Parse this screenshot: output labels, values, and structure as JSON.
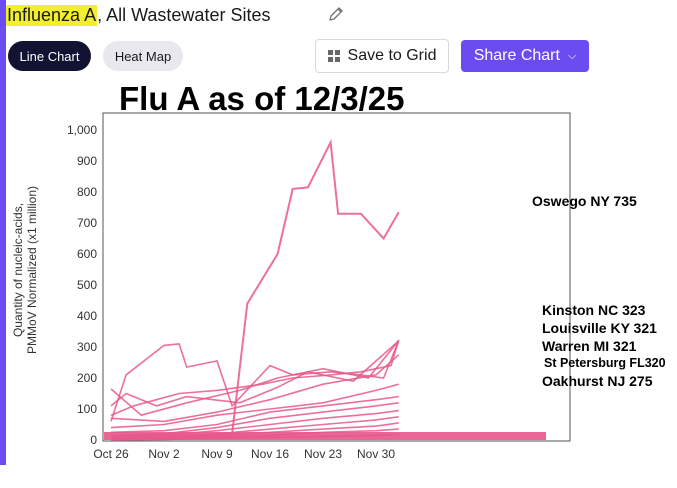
{
  "header": {
    "title_highlight": "Influenza A",
    "title_rest": ", All Wastewater Sites"
  },
  "toolbar": {
    "line_chart_label": "Line Chart",
    "heat_map_label": "Heat Map",
    "save_label": "Save to Grid",
    "share_label": "Share Chart"
  },
  "overlay_title": "Flu A as of 12/3/25",
  "annotations": [
    "Oswego NY 735",
    "Kinston NC 323",
    "Louisville KY 321",
    "Warren MI 321",
    "St Petersburg FL320",
    "Oakhurst NJ 275"
  ],
  "colors": {
    "accent": "#6a4cf0",
    "series": "#e8578a",
    "highlight": "#f2ef2e"
  },
  "chart_data": {
    "type": "line",
    "title": "",
    "xlabel": "",
    "ylabel": "Quantity of nucleic-acids,\nPMMoV Normalized (x1 million)",
    "ylim": [
      0,
      1000
    ],
    "yticks": [
      0,
      100,
      200,
      300,
      400,
      500,
      600,
      700,
      800,
      900,
      1000
    ],
    "ytick_labels": [
      "0",
      "100",
      "200",
      "300",
      "400",
      "500",
      "600",
      "700",
      "800",
      "900",
      "1,000"
    ],
    "xlim": [
      "2025-10-26",
      "2025-12-05"
    ],
    "xticks": [
      "2025-10-26",
      "2025-11-02",
      "2025-11-09",
      "2025-11-16",
      "2025-11-23",
      "2025-11-30"
    ],
    "xtick_labels": [
      "Oct 26",
      "Nov 2",
      "Nov 9",
      "Nov 16",
      "Nov 23",
      "Nov 30"
    ],
    "grid": false,
    "series": [
      {
        "x": [
          "2025-11-11",
          "2025-11-13",
          "2025-11-17",
          "2025-11-19",
          "2025-11-21",
          "2025-11-24",
          "2025-11-25",
          "2025-11-28",
          "2025-12-01",
          "2025-12-03"
        ],
        "y": [
          20,
          440,
          600,
          810,
          815,
          960,
          730,
          730,
          650,
          735
        ]
      },
      {
        "x": [
          "2025-10-26",
          "2025-10-29",
          "2025-11-01",
          "2025-11-04",
          "2025-11-09",
          "2025-11-15",
          "2025-11-19",
          "2025-11-24",
          "2025-11-28",
          "2025-12-02",
          "2025-12-03"
        ],
        "y": [
          80,
          110,
          130,
          150,
          160,
          180,
          200,
          210,
          220,
          240,
          323
        ]
      },
      {
        "x": [
          "2025-10-26",
          "2025-10-28",
          "2025-11-02",
          "2025-11-04",
          "2025-11-05",
          "2025-11-09",
          "2025-11-11",
          "2025-11-16",
          "2025-11-19",
          "2025-11-24",
          "2025-11-28",
          "2025-12-01",
          "2025-12-03"
        ],
        "y": [
          60,
          210,
          305,
          310,
          235,
          255,
          110,
          240,
          210,
          220,
          210,
          200,
          321
        ]
      },
      {
        "x": [
          "2025-10-26",
          "2025-10-30",
          "2025-11-05",
          "2025-11-12",
          "2025-11-17",
          "2025-11-23",
          "2025-11-29",
          "2025-12-03"
        ],
        "y": [
          165,
          80,
          120,
          160,
          200,
          230,
          200,
          321
        ]
      },
      {
        "x": [
          "2025-10-26",
          "2025-10-28",
          "2025-11-01",
          "2025-11-05",
          "2025-11-12",
          "2025-11-17",
          "2025-11-21",
          "2025-11-27",
          "2025-12-03"
        ],
        "y": [
          110,
          150,
          110,
          140,
          120,
          170,
          220,
          190,
          320
        ]
      },
      {
        "x": [
          "2025-10-26",
          "2025-11-02",
          "2025-11-09",
          "2025-11-16",
          "2025-11-23",
          "2025-11-30",
          "2025-12-03"
        ],
        "y": [
          70,
          60,
          90,
          130,
          180,
          210,
          275
        ]
      },
      {
        "x": [
          "2025-10-26",
          "2025-11-02",
          "2025-11-09",
          "2025-11-16",
          "2025-11-23",
          "2025-11-30",
          "2025-12-03"
        ],
        "y": [
          40,
          50,
          80,
          100,
          120,
          160,
          180
        ]
      },
      {
        "x": [
          "2025-10-26",
          "2025-11-02",
          "2025-11-09",
          "2025-11-16",
          "2025-11-23",
          "2025-11-30",
          "2025-12-03"
        ],
        "y": [
          25,
          30,
          50,
          90,
          110,
          130,
          140
        ]
      },
      {
        "x": [
          "2025-10-26",
          "2025-11-02",
          "2025-11-09",
          "2025-11-16",
          "2025-11-23",
          "2025-11-30",
          "2025-12-03"
        ],
        "y": [
          15,
          20,
          40,
          70,
          90,
          110,
          120
        ]
      },
      {
        "x": [
          "2025-10-26",
          "2025-11-02",
          "2025-11-09",
          "2025-11-16",
          "2025-11-23",
          "2025-11-30",
          "2025-12-03"
        ],
        "y": [
          10,
          15,
          30,
          50,
          70,
          85,
          95
        ]
      },
      {
        "x": [
          "2025-10-26",
          "2025-11-02",
          "2025-11-09",
          "2025-11-16",
          "2025-11-23",
          "2025-11-30",
          "2025-12-03"
        ],
        "y": [
          5,
          10,
          20,
          35,
          50,
          65,
          75
        ]
      },
      {
        "x": [
          "2025-10-26",
          "2025-11-02",
          "2025-11-09",
          "2025-11-16",
          "2025-11-23",
          "2025-11-30",
          "2025-12-03"
        ],
        "y": [
          3,
          8,
          15,
          25,
          35,
          45,
          55
        ]
      },
      {
        "x": [
          "2025-10-26",
          "2025-11-02",
          "2025-11-09",
          "2025-11-16",
          "2025-11-23",
          "2025-11-30",
          "2025-12-03"
        ],
        "y": [
          2,
          5,
          10,
          15,
          25,
          30,
          35
        ]
      },
      {
        "x": [
          "2025-10-26",
          "2025-11-02",
          "2025-11-09",
          "2025-11-16",
          "2025-11-23",
          "2025-11-30",
          "2025-12-03"
        ],
        "y": [
          0,
          2,
          5,
          8,
          12,
          15,
          18
        ]
      }
    ]
  }
}
